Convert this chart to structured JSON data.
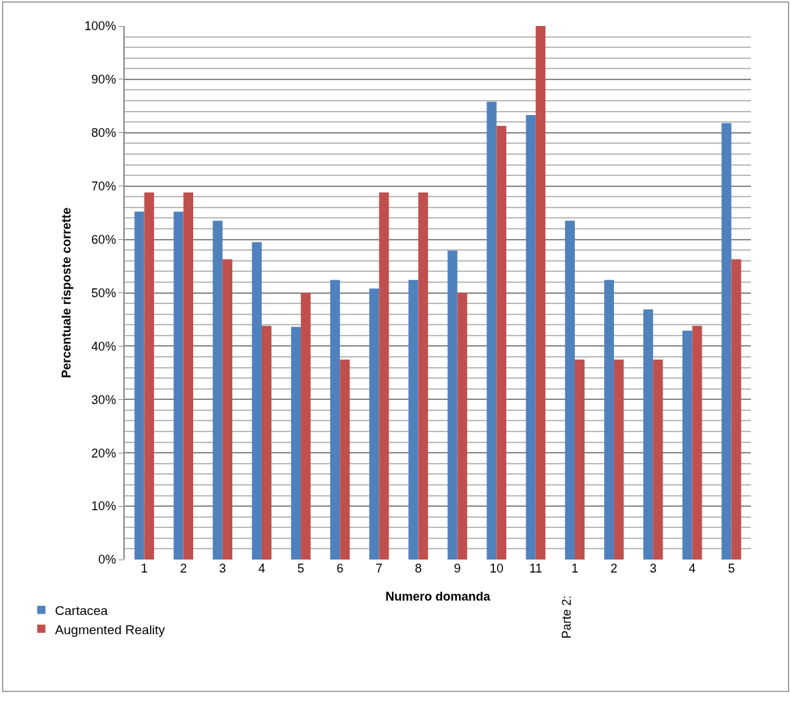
{
  "chart_data": {
    "type": "bar",
    "xlabel": "Numero domanda",
    "ylabel": "Percentuale risposte corrette",
    "categories": [
      "1",
      "2",
      "3",
      "4",
      "5",
      "6",
      "7",
      "8",
      "9",
      "10",
      "11",
      "1",
      "2",
      "3",
      "4",
      "5"
    ],
    "series": [
      {
        "name": "Cartacea",
        "color": "#4f81bd",
        "values": [
          65.2,
          65.2,
          63.5,
          59.5,
          43.6,
          52.4,
          50.8,
          52.4,
          57.9,
          85.8,
          83.3,
          63.5,
          52.4,
          46.9,
          42.9,
          81.8
        ]
      },
      {
        "name": "Augmented Reality",
        "color": "#c0504d",
        "values": [
          68.8,
          68.8,
          56.3,
          43.8,
          50,
          37.5,
          68.8,
          68.8,
          50,
          81.3,
          100,
          37.5,
          37.5,
          37.5,
          43.8,
          56.3
        ]
      }
    ],
    "ylim": [
      0,
      100
    ],
    "yticks": [
      {
        "value": 0,
        "label": "0%"
      },
      {
        "value": 2,
        "label": null
      },
      {
        "value": 4,
        "label": null
      },
      {
        "value": 6,
        "label": null
      },
      {
        "value": 8,
        "label": null
      },
      {
        "value": 10,
        "label": "10%"
      },
      {
        "value": 12,
        "label": null
      },
      {
        "value": 14,
        "label": null
      },
      {
        "value": 16,
        "label": null
      },
      {
        "value": 18,
        "label": null
      },
      {
        "value": 20,
        "label": "20%"
      },
      {
        "value": 22,
        "label": null
      },
      {
        "value": 24,
        "label": null
      },
      {
        "value": 26,
        "label": null
      },
      {
        "value": 28,
        "label": null
      },
      {
        "value": 30,
        "label": "30%"
      },
      {
        "value": 32,
        "label": null
      },
      {
        "value": 34,
        "label": null
      },
      {
        "value": 36,
        "label": null
      },
      {
        "value": 38,
        "label": null
      },
      {
        "value": 40,
        "label": "40%"
      },
      {
        "value": 42,
        "label": null
      },
      {
        "value": 44,
        "label": null
      },
      {
        "value": 46,
        "label": null
      },
      {
        "value": 48,
        "label": null
      },
      {
        "value": 50,
        "label": "50%"
      },
      {
        "value": 52,
        "label": null
      },
      {
        "value": 54,
        "label": null
      },
      {
        "value": 56,
        "label": null
      },
      {
        "value": 58,
        "label": null
      },
      {
        "value": 60,
        "label": "60%"
      },
      {
        "value": 62,
        "label": null
      },
      {
        "value": 64,
        "label": null
      },
      {
        "value": 66,
        "label": null
      },
      {
        "value": 68,
        "label": null
      },
      {
        "value": 70,
        "label": "70%"
      },
      {
        "value": 72,
        "label": null
      },
      {
        "value": 74,
        "label": null
      },
      {
        "value": 76,
        "label": null
      },
      {
        "value": 78,
        "label": null
      },
      {
        "value": 80,
        "label": "80%"
      },
      {
        "value": 82,
        "label": null
      },
      {
        "value": 84,
        "label": null
      },
      {
        "value": 86,
        "label": null
      },
      {
        "value": 88,
        "label": null
      },
      {
        "value": 90,
        "label": "90%"
      },
      {
        "value": 92,
        "label": null
      },
      {
        "value": 94,
        "label": null
      },
      {
        "value": 96,
        "label": null
      },
      {
        "value": 98,
        "label": null
      },
      {
        "value": 100,
        "label": "100%"
      }
    ],
    "grid": "y",
    "legend": "bottom left",
    "annotations": [
      "Parte 2:"
    ]
  }
}
